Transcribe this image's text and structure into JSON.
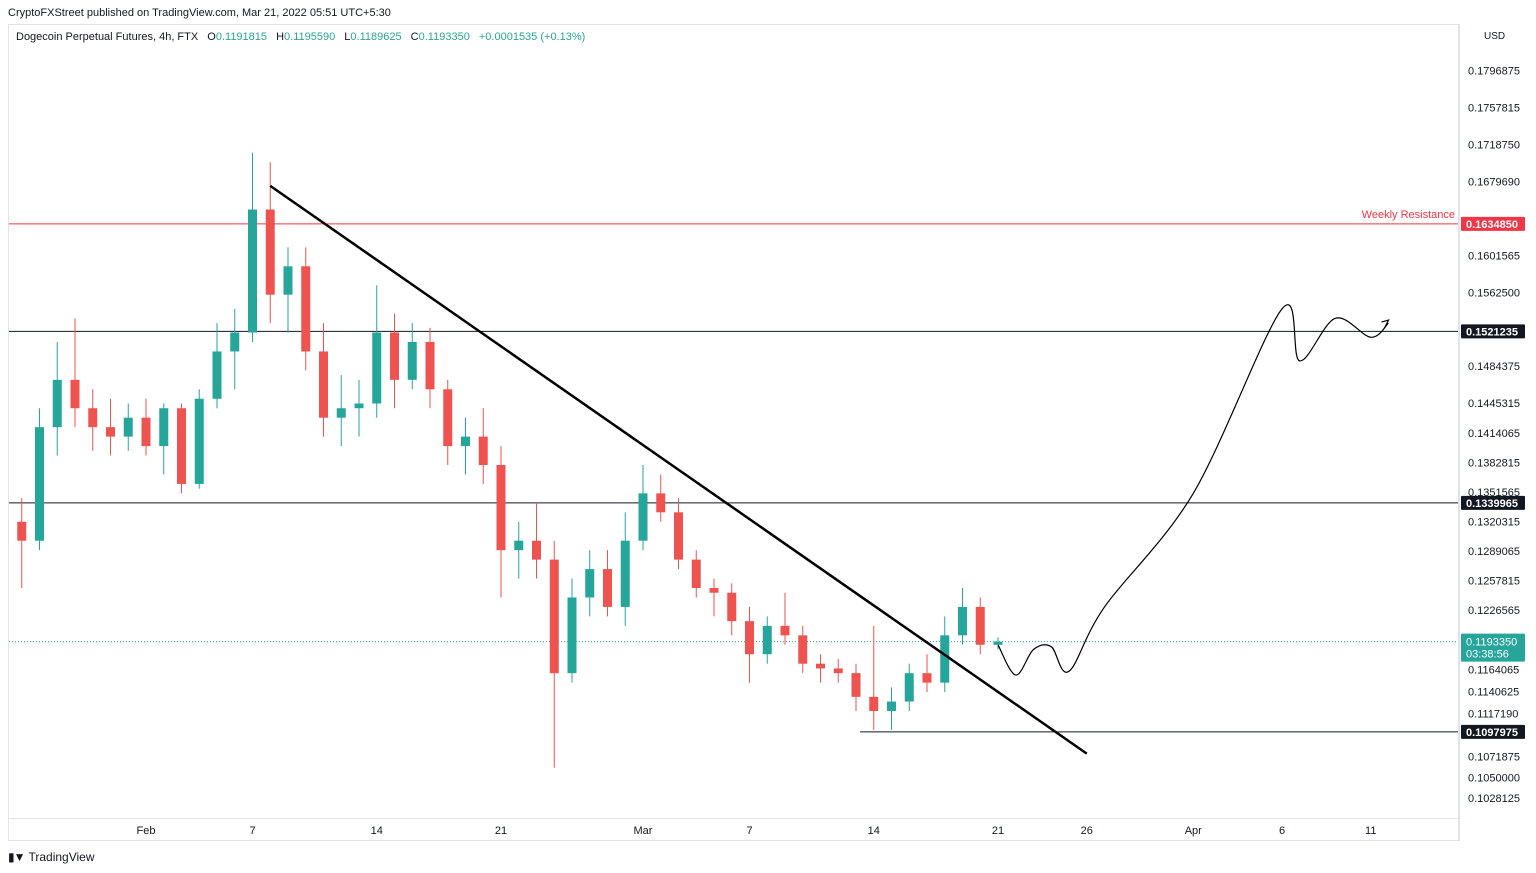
{
  "header": {
    "publisher": "CryptoFXStreet published on TradingView.com, Mar 21, 2022 05:51 UTC+5:30",
    "symbol": "Dogecoin Perpetual Futures, 4h, FTX",
    "open_label": "O",
    "open": "0.1191815",
    "high_label": "H",
    "high": "0.1195590",
    "low_label": "L",
    "low": "0.1189625",
    "close_label": "C",
    "close": "0.1193350",
    "change": "+0.0001535 (+0.13%)"
  },
  "price_axis": {
    "currency": "USD",
    "countdown": "03:38:56"
  },
  "footer": {
    "logo": "TradingView"
  },
  "colors": {
    "up": "#26a69a",
    "down": "#ef5350",
    "resistance": "#f23645",
    "level": "#131722",
    "current": "#26a69a"
  },
  "chart_data": {
    "type": "candlestick",
    "title": "Dogecoin Perpetual Futures, 4h, FTX",
    "ylim": [
      0.1008,
      0.1845
    ],
    "y_ticks": [
      "0.1796875",
      "0.1757815",
      "0.1718750",
      "0.1679690",
      "0.1601565",
      "0.1562500",
      "0.1484375",
      "0.1445315",
      "0.1414065",
      "0.1382815",
      "0.1351565",
      "0.1320315",
      "0.1289065",
      "0.1257815",
      "0.1226565",
      "0.1164065",
      "0.1140625",
      "0.1117190",
      "0.1071875",
      "0.1050000",
      "0.1028125"
    ],
    "x_ticks": [
      "Feb",
      "7",
      "14",
      "21",
      "Mar",
      "7",
      "14",
      "21",
      "26",
      "Apr",
      "6",
      "11"
    ],
    "levels": [
      {
        "label": "0.1634850",
        "value": 0.163485,
        "color": "#f23645",
        "annotation": "Weekly Resistance"
      },
      {
        "label": "0.1521235",
        "value": 0.1521235,
        "color": "#131722",
        "annotation": ""
      },
      {
        "label": "0.1339965",
        "value": 0.1339965,
        "color": "#131722",
        "annotation": ""
      },
      {
        "label": "0.1097975",
        "value": 0.1097975,
        "color": "#131722",
        "annotation": ""
      }
    ],
    "current_price": {
      "label": "0.1193350",
      "value": 0.119335
    },
    "trendline": {
      "from": {
        "date": "Feb 8",
        "price": 0.1675
      },
      "to": {
        "date": "Mar 26",
        "price": 0.1075
      }
    },
    "projection_path": [
      {
        "date": "Mar 21",
        "price": 0.119
      },
      {
        "date": "Mar 22",
        "price": 0.1158
      },
      {
        "date": "Mar 23",
        "price": 0.1185
      },
      {
        "date": "Mar 24",
        "price": 0.1188
      },
      {
        "date": "Mar 25",
        "price": 0.1162
      },
      {
        "date": "Mar 27",
        "price": 0.123
      },
      {
        "date": "Apr 1",
        "price": 0.135
      },
      {
        "date": "Apr 6",
        "price": 0.1545
      },
      {
        "date": "Apr 7",
        "price": 0.149
      },
      {
        "date": "Apr 9",
        "price": 0.1535
      },
      {
        "date": "Apr 11",
        "price": 0.1515
      },
      {
        "date": "Apr 12",
        "price": 0.153
      }
    ],
    "candles_ohlc": [
      [
        "Jan 25",
        0.132,
        0.1345,
        0.125,
        0.13
      ],
      [
        "Jan 26",
        0.13,
        0.144,
        0.129,
        0.142
      ],
      [
        "Jan 27",
        0.142,
        0.151,
        0.139,
        0.147
      ],
      [
        "Jan 28",
        0.147,
        0.1535,
        0.142,
        0.144
      ],
      [
        "Jan 29",
        0.144,
        0.146,
        0.1395,
        0.142
      ],
      [
        "Jan 30",
        0.142,
        0.145,
        0.139,
        0.141
      ],
      [
        "Jan 31",
        0.141,
        0.1445,
        0.1395,
        0.143
      ],
      [
        "Feb 1",
        0.143,
        0.145,
        0.139,
        0.14
      ],
      [
        "Feb 2",
        0.14,
        0.1445,
        0.137,
        0.144
      ],
      [
        "Feb 3",
        0.144,
        0.1445,
        0.135,
        0.136
      ],
      [
        "Feb 4",
        0.136,
        0.146,
        0.1355,
        0.145
      ],
      [
        "Feb 5",
        0.145,
        0.153,
        0.144,
        0.15
      ],
      [
        "Feb 6",
        0.15,
        0.1545,
        0.146,
        0.152
      ],
      [
        "Feb 7",
        0.152,
        0.171,
        0.151,
        0.165
      ],
      [
        "Feb 8",
        0.165,
        0.17,
        0.153,
        0.156
      ],
      [
        "Feb 9",
        0.156,
        0.161,
        0.152,
        0.159
      ],
      [
        "Feb 10",
        0.159,
        0.161,
        0.148,
        0.15
      ],
      [
        "Feb 11",
        0.15,
        0.153,
        0.141,
        0.143
      ],
      [
        "Feb 12",
        0.143,
        0.1475,
        0.14,
        0.144
      ],
      [
        "Feb 13",
        0.144,
        0.147,
        0.141,
        0.1445
      ],
      [
        "Feb 14",
        0.1445,
        0.157,
        0.143,
        0.152
      ],
      [
        "Feb 15",
        0.152,
        0.154,
        0.144,
        0.147
      ],
      [
        "Feb 16",
        0.147,
        0.153,
        0.146,
        0.151
      ],
      [
        "Feb 17",
        0.151,
        0.1525,
        0.144,
        0.146
      ],
      [
        "Feb 18",
        0.146,
        0.147,
        0.138,
        0.14
      ],
      [
        "Feb 19",
        0.14,
        0.143,
        0.137,
        0.141
      ],
      [
        "Feb 20",
        0.141,
        0.144,
        0.136,
        0.138
      ],
      [
        "Feb 21",
        0.138,
        0.14,
        0.124,
        0.129
      ],
      [
        "Feb 22",
        0.129,
        0.132,
        0.126,
        0.13
      ],
      [
        "Feb 23",
        0.13,
        0.134,
        0.126,
        0.128
      ],
      [
        "Feb 24",
        0.128,
        0.13,
        0.106,
        0.116
      ],
      [
        "Feb 25",
        0.116,
        0.126,
        0.115,
        0.124
      ],
      [
        "Feb 26",
        0.124,
        0.129,
        0.122,
        0.127
      ],
      [
        "Feb 27",
        0.127,
        0.129,
        0.122,
        0.123
      ],
      [
        "Feb 28",
        0.123,
        0.133,
        0.121,
        0.13
      ],
      [
        "Mar 1",
        0.13,
        0.138,
        0.129,
        0.135
      ],
      [
        "Mar 2",
        0.135,
        0.137,
        0.132,
        0.133
      ],
      [
        "Mar 3",
        0.133,
        0.1345,
        0.127,
        0.128
      ],
      [
        "Mar 4",
        0.128,
        0.129,
        0.124,
        0.125
      ],
      [
        "Mar 5",
        0.125,
        0.126,
        0.122,
        0.1245
      ],
      [
        "Mar 6",
        0.1245,
        0.1255,
        0.12,
        0.1215
      ],
      [
        "Mar 7",
        0.1215,
        0.123,
        0.115,
        0.118
      ],
      [
        "Mar 8",
        0.118,
        0.122,
        0.117,
        0.121
      ],
      [
        "Mar 9",
        0.121,
        0.1245,
        0.119,
        0.12
      ],
      [
        "Mar 10",
        0.12,
        0.121,
        0.116,
        0.117
      ],
      [
        "Mar 11",
        0.117,
        0.118,
        0.115,
        0.1165
      ],
      [
        "Mar 12",
        0.1165,
        0.1175,
        0.115,
        0.116
      ],
      [
        "Mar 13",
        0.116,
        0.117,
        0.112,
        0.1135
      ],
      [
        "Mar 14",
        0.1135,
        0.121,
        0.11,
        0.112
      ],
      [
        "Mar 15",
        0.112,
        0.1145,
        0.11,
        0.113
      ],
      [
        "Mar 16",
        0.113,
        0.117,
        0.112,
        0.116
      ],
      [
        "Mar 17",
        0.116,
        0.118,
        0.114,
        0.115
      ],
      [
        "Mar 18",
        0.115,
        0.122,
        0.114,
        0.12
      ],
      [
        "Mar 19",
        0.12,
        0.125,
        0.119,
        0.123
      ],
      [
        "Mar 20",
        0.123,
        0.124,
        0.118,
        0.119
      ],
      [
        "Mar 21",
        0.119,
        0.1198,
        0.1185,
        0.119335
      ]
    ]
  }
}
